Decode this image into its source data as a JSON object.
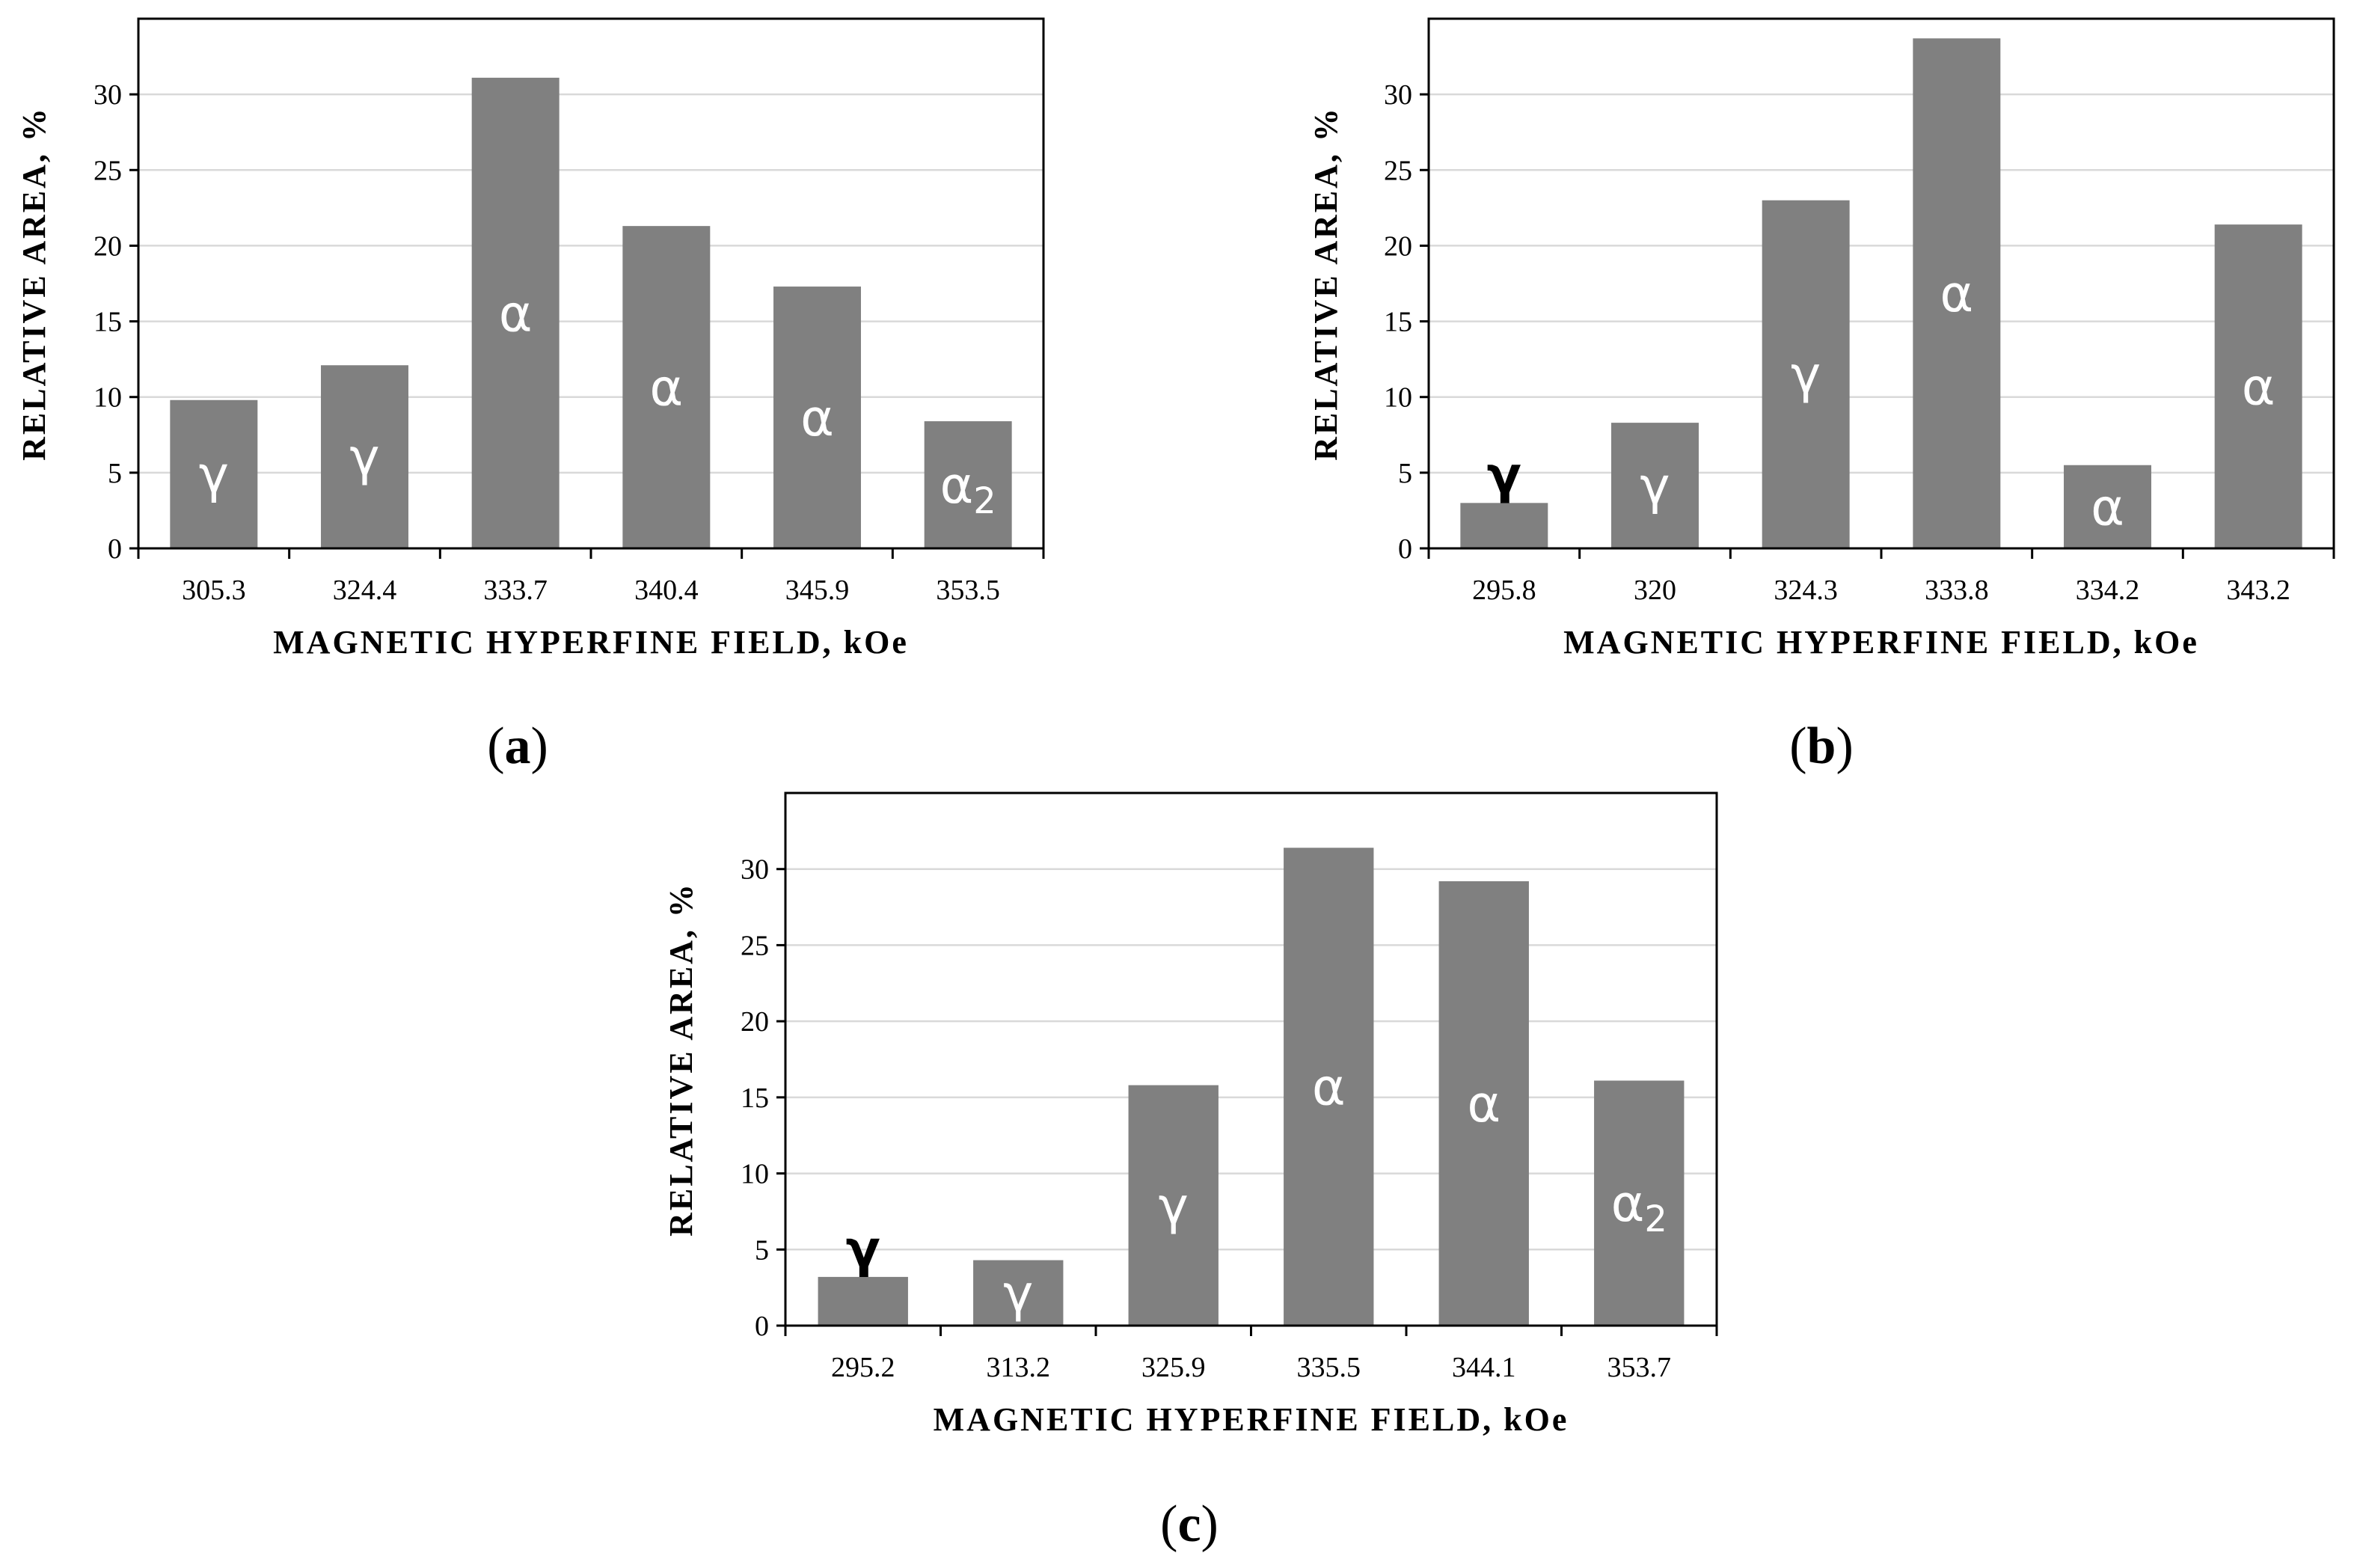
{
  "bar_color": "#808080",
  "grid_color": "#d9d9d9",
  "chart_data": [
    {
      "type": "bar",
      "panel": "a",
      "title": "",
      "xlabel": "MAGNETIC  HYPERFINE  FIELD,  kOe",
      "ylabel": "RELATIVE  AREA,  %",
      "ylim": [
        0,
        35
      ],
      "yticks": [
        0,
        5,
        10,
        15,
        20,
        25,
        30
      ],
      "grid": true,
      "categories": [
        "305.3",
        "324.4",
        "333.7",
        "340.4",
        "345.9",
        "353.5"
      ],
      "values": [
        9.8,
        12.1,
        31.1,
        21.3,
        17.3,
        8.4
      ],
      "bar_labels": [
        {
          "base": "γ",
          "sub": ""
        },
        {
          "base": "γ",
          "sub": ""
        },
        {
          "base": "α",
          "sub": ""
        },
        {
          "base": "α",
          "sub": ""
        },
        {
          "base": "α",
          "sub": ""
        },
        {
          "base": "α",
          "sub": "2"
        }
      ]
    },
    {
      "type": "bar",
      "panel": "b",
      "title": "",
      "xlabel": "MAGNETIC  HYPERFINE  FIELD,  kOe",
      "ylabel": "RELATIVE  AREA,  %",
      "ylim": [
        0,
        35
      ],
      "yticks": [
        0,
        5,
        10,
        15,
        20,
        25,
        30
      ],
      "grid": true,
      "categories": [
        "295.8",
        "320",
        "324.3",
        "333.8",
        "334.2",
        "343.2"
      ],
      "values": [
        3.0,
        8.3,
        23.0,
        33.7,
        5.5,
        21.4
      ],
      "bar_labels": [
        {
          "base": "γ",
          "sub": ""
        },
        {
          "base": "γ",
          "sub": ""
        },
        {
          "base": "γ",
          "sub": ""
        },
        {
          "base": "α",
          "sub": ""
        },
        {
          "base": "α",
          "sub": ""
        },
        {
          "base": "α",
          "sub": ""
        }
      ]
    },
    {
      "type": "bar",
      "panel": "c",
      "title": "",
      "xlabel": "MAGNETIC  HYPERFINE  FIELD,  kOe",
      "ylabel": "RELATIVE  AREA,  %",
      "ylim": [
        0,
        35
      ],
      "yticks": [
        0,
        5,
        10,
        15,
        20,
        25,
        30
      ],
      "grid": true,
      "categories": [
        "295.2",
        "313.2",
        "325.9",
        "335.5",
        "344.1",
        "353.7"
      ],
      "values": [
        3.2,
        4.3,
        15.8,
        31.4,
        29.2,
        16.1
      ],
      "bar_labels": [
        {
          "base": "γ",
          "sub": ""
        },
        {
          "base": "γ",
          "sub": ""
        },
        {
          "base": "γ",
          "sub": ""
        },
        {
          "base": "α",
          "sub": ""
        },
        {
          "base": "α",
          "sub": ""
        },
        {
          "base": "α",
          "sub": "2"
        }
      ]
    }
  ]
}
